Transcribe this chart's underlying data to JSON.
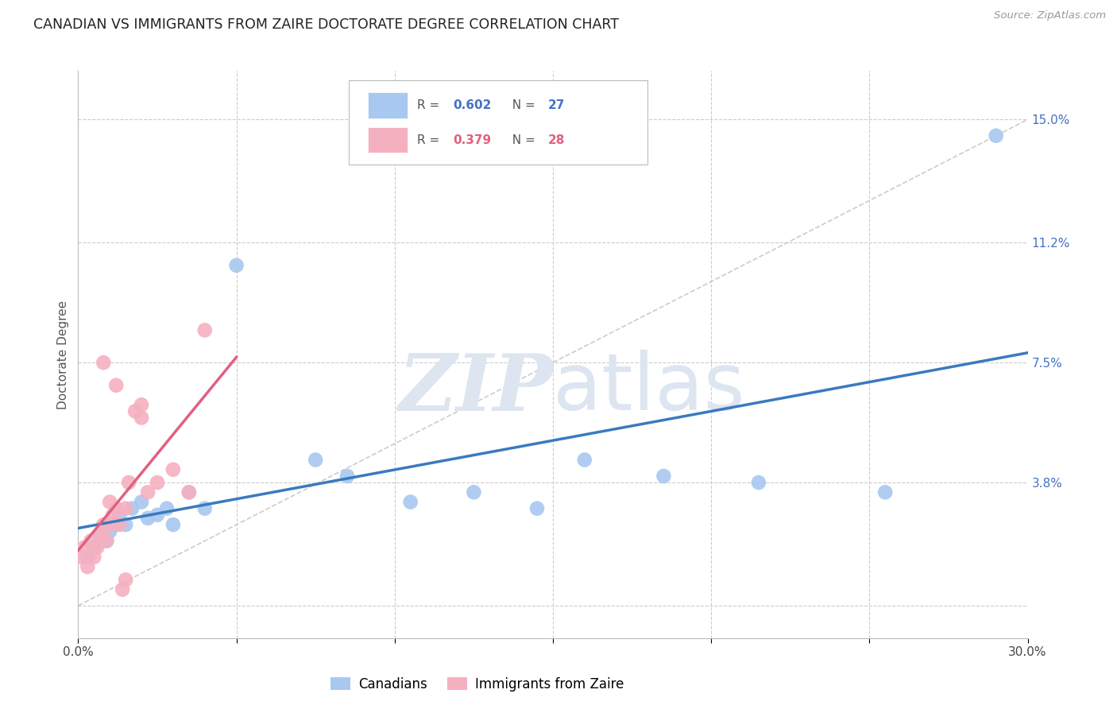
{
  "title": "CANADIAN VS IMMIGRANTS FROM ZAIRE DOCTORATE DEGREE CORRELATION CHART",
  "source": "Source: ZipAtlas.com",
  "ylabel": "Doctorate Degree",
  "ytick_values": [
    0.0,
    3.8,
    7.5,
    11.2,
    15.0
  ],
  "xtick_values": [
    0,
    5,
    10,
    15,
    20,
    25,
    30
  ],
  "xlim": [
    0,
    30
  ],
  "ylim": [
    -1.0,
    16.5
  ],
  "canadian_R": 0.602,
  "canadian_N": 27,
  "zaire_R": 0.379,
  "zaire_N": 28,
  "canadian_color": "#a8c8f0",
  "zaire_color": "#f5b0c0",
  "canadian_line_color": "#3a7abf",
  "zaire_line_color": "#e06080",
  "diagonal_color": "#cccccc",
  "background_color": "#ffffff",
  "watermark_zip": "ZIP",
  "watermark_atlas": "atlas",
  "watermark_color": "#dde5f0",
  "canadian_x": [
    0.3,
    0.5,
    0.7,
    0.9,
    1.0,
    1.2,
    1.3,
    1.5,
    1.7,
    2.0,
    2.2,
    2.5,
    2.8,
    3.0,
    3.5,
    4.0,
    5.0,
    7.5,
    8.5,
    10.5,
    12.5,
    14.5,
    16.0,
    18.5,
    21.5,
    25.5,
    29.0
  ],
  "canadian_y": [
    1.5,
    1.8,
    2.2,
    2.0,
    2.3,
    2.5,
    2.8,
    2.5,
    3.0,
    3.2,
    2.7,
    2.8,
    3.0,
    2.5,
    3.5,
    3.0,
    10.5,
    4.5,
    4.0,
    3.2,
    3.5,
    3.0,
    4.5,
    4.0,
    3.8,
    3.5,
    14.5
  ],
  "zaire_x": [
    0.1,
    0.2,
    0.3,
    0.4,
    0.5,
    0.6,
    0.7,
    0.8,
    0.9,
    1.0,
    1.1,
    1.2,
    1.3,
    1.4,
    1.5,
    1.6,
    1.8,
    2.0,
    2.2,
    2.5,
    3.0,
    3.5,
    4.0,
    1.0,
    1.5,
    2.0,
    0.8,
    1.2
  ],
  "zaire_y": [
    1.5,
    1.8,
    1.2,
    2.0,
    1.5,
    1.8,
    2.2,
    2.5,
    2.0,
    2.5,
    2.8,
    3.0,
    2.5,
    0.5,
    0.8,
    3.8,
    6.0,
    6.2,
    3.5,
    3.8,
    4.2,
    3.5,
    8.5,
    3.2,
    3.0,
    5.8,
    7.5,
    6.8
  ]
}
